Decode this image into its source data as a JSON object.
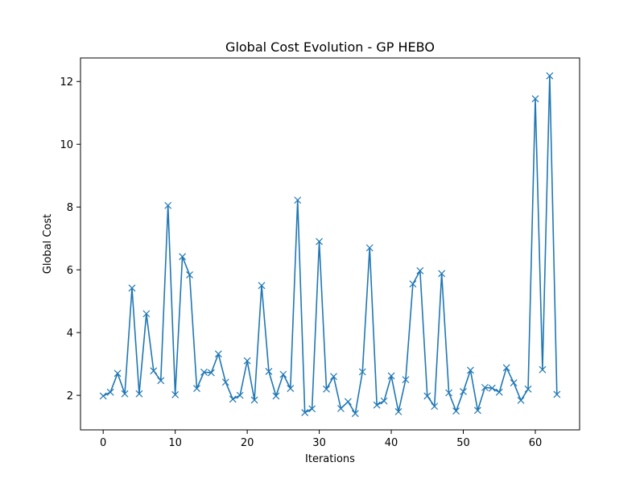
{
  "chart_data": {
    "type": "line",
    "title": "Global Cost Evolution - GP HEBO",
    "xlabel": "Iterations",
    "ylabel": "Global Cost",
    "xlim": [
      -3.15,
      66.15
    ],
    "ylim": [
      0.9,
      12.75
    ],
    "xticks": [
      0,
      10,
      20,
      30,
      40,
      50,
      60
    ],
    "yticks": [
      2,
      4,
      6,
      8,
      10,
      12
    ],
    "grid": false,
    "marker": "x",
    "series_color": "#1f77b4",
    "series": [
      {
        "x": [
          0,
          1,
          2,
          3,
          4,
          5,
          6,
          7,
          8,
          9,
          10,
          11,
          12,
          13,
          14,
          15,
          16,
          17,
          18,
          19,
          20,
          21,
          22,
          23,
          24,
          25,
          26,
          27,
          28,
          29,
          30,
          31,
          32,
          33,
          34,
          35,
          36,
          37,
          38,
          39,
          40,
          41,
          42,
          43,
          44,
          45,
          46,
          47,
          48,
          49,
          50,
          51,
          52,
          53,
          54,
          55,
          56,
          57,
          58,
          59,
          60,
          61,
          62,
          63
        ],
        "values": [
          1.98,
          2.1,
          2.7,
          2.05,
          5.42,
          2.05,
          4.6,
          2.78,
          2.47,
          8.05,
          2.02,
          6.42,
          5.84,
          2.22,
          2.74,
          2.72,
          3.32,
          2.42,
          1.88,
          2.0,
          3.1,
          1.85,
          5.5,
          2.76,
          1.98,
          2.67,
          2.22,
          8.22,
          1.45,
          1.57,
          6.9,
          2.2,
          2.6,
          1.58,
          1.8,
          1.42,
          2.75,
          6.7,
          1.69,
          1.82,
          2.62,
          1.48,
          2.5,
          5.55,
          5.97,
          1.98,
          1.65,
          5.88,
          2.08,
          1.5,
          2.12,
          2.8,
          1.52,
          2.25,
          2.23,
          2.1,
          2.88,
          2.4,
          1.84,
          2.2,
          11.45,
          2.82,
          12.18,
          2.03
        ]
      }
    ]
  }
}
